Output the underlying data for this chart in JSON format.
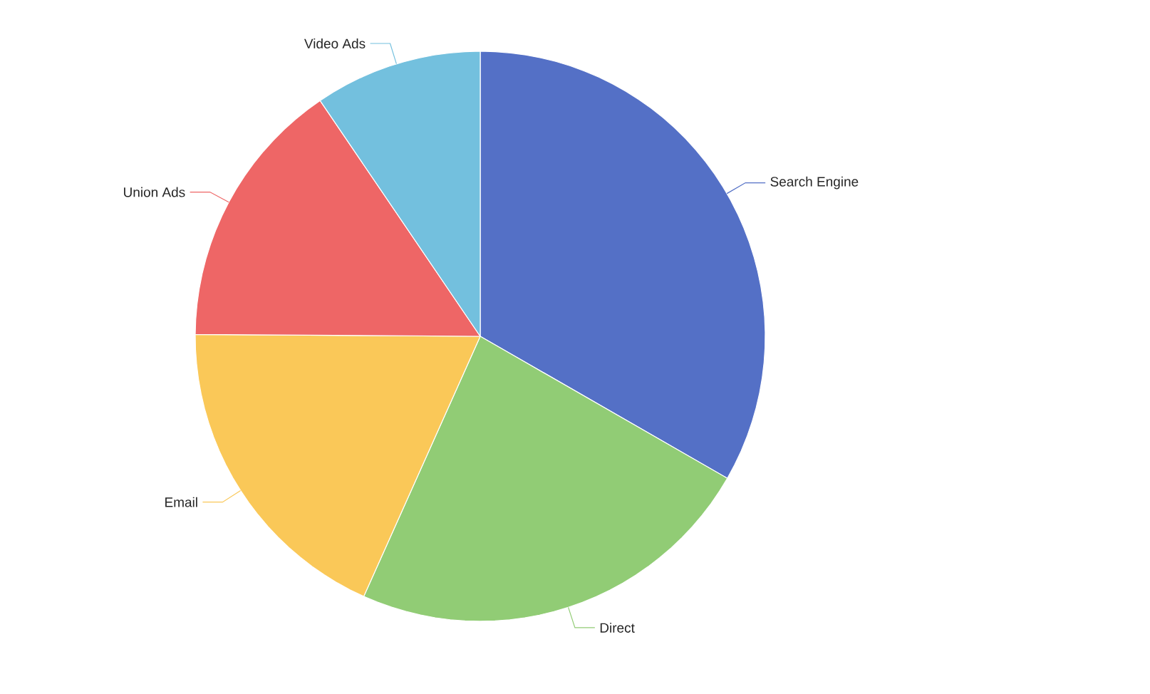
{
  "chart_data": {
    "type": "pie",
    "categories": [
      "Search Engine",
      "Direct",
      "Email",
      "Union Ads",
      "Video Ads"
    ],
    "values": [
      33.3,
      23.4,
      18.4,
      15.4,
      9.5
    ],
    "colors": [
      "#5470c6",
      "#91cc75",
      "#fac858",
      "#ee6666",
      "#73c0de"
    ]
  }
}
